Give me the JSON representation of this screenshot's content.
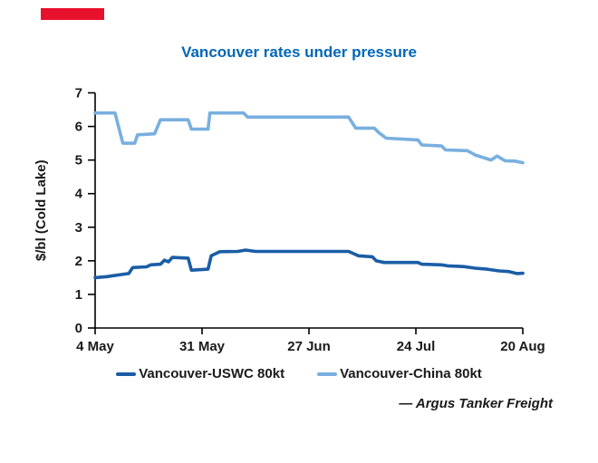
{
  "brand": {
    "bar_color": "#E8112D"
  },
  "title": {
    "text": "Vancouver rates under pressure",
    "color": "#0067B8"
  },
  "attribution": "— Argus Tanker Freight",
  "chart_data": {
    "type": "line",
    "title": "Vancouver rates under pressure",
    "xlabel": "",
    "ylabel": "$/bl (Cold Lake)",
    "ylim": [
      0,
      7
    ],
    "yticks": [
      0,
      1,
      2,
      3,
      4,
      5,
      6,
      7
    ],
    "x_unit": "days since 4 May",
    "x_range_days": [
      0,
      108
    ],
    "xtick_days": [
      0,
      27,
      54,
      81,
      108
    ],
    "xtick_labels": [
      "4 May",
      "31 May",
      "27 Jun",
      "24 Jul",
      "20 Aug"
    ],
    "grid": false,
    "legend_position": "bottom",
    "axis_color": "#000000",
    "tick_label_color": "#1a1a1a",
    "series": [
      {
        "name": "Vancouver-USWC 80kt",
        "color": "#1A5DA6",
        "points": [
          [
            0,
            1.5
          ],
          [
            3,
            1.53
          ],
          [
            6,
            1.58
          ],
          [
            8.5,
            1.62
          ],
          [
            9.5,
            1.8
          ],
          [
            13,
            1.82
          ],
          [
            14,
            1.88
          ],
          [
            16.5,
            1.9
          ],
          [
            17.5,
            2.02
          ],
          [
            18.5,
            1.97
          ],
          [
            19.5,
            2.1
          ],
          [
            23.5,
            2.08
          ],
          [
            24.3,
            1.72
          ],
          [
            28.5,
            1.75
          ],
          [
            29.3,
            2.15
          ],
          [
            31.5,
            2.27
          ],
          [
            36,
            2.28
          ],
          [
            38,
            2.32
          ],
          [
            40.5,
            2.28
          ],
          [
            64,
            2.28
          ],
          [
            65.5,
            2.2
          ],
          [
            66.5,
            2.15
          ],
          [
            70,
            2.12
          ],
          [
            71,
            2.0
          ],
          [
            73,
            1.95
          ],
          [
            81.5,
            1.95
          ],
          [
            82.5,
            1.9
          ],
          [
            87.5,
            1.88
          ],
          [
            89,
            1.85
          ],
          [
            93,
            1.83
          ],
          [
            96,
            1.78
          ],
          [
            99,
            1.75
          ],
          [
            102,
            1.7
          ],
          [
            104.5,
            1.68
          ],
          [
            106.5,
            1.62
          ],
          [
            108,
            1.63
          ]
        ]
      },
      {
        "name": "Vancouver-China 80kt",
        "color": "#79AFDF",
        "points": [
          [
            0,
            6.4
          ],
          [
            5,
            6.4
          ],
          [
            7,
            5.5
          ],
          [
            10,
            5.5
          ],
          [
            10.7,
            5.75
          ],
          [
            15,
            5.78
          ],
          [
            16.5,
            6.2
          ],
          [
            23.5,
            6.2
          ],
          [
            24.3,
            5.92
          ],
          [
            28.5,
            5.92
          ],
          [
            29,
            6.4
          ],
          [
            37.5,
            6.4
          ],
          [
            38.5,
            6.28
          ],
          [
            64,
            6.28
          ],
          [
            65.8,
            5.95
          ],
          [
            70.5,
            5.95
          ],
          [
            71.5,
            5.83
          ],
          [
            73.5,
            5.65
          ],
          [
            81.5,
            5.6
          ],
          [
            82.5,
            5.45
          ],
          [
            87.5,
            5.42
          ],
          [
            88.5,
            5.3
          ],
          [
            94,
            5.28
          ],
          [
            96,
            5.15
          ],
          [
            100,
            5.0
          ],
          [
            101.5,
            5.12
          ],
          [
            103.5,
            4.98
          ],
          [
            106,
            4.97
          ],
          [
            108,
            4.92
          ]
        ]
      }
    ]
  }
}
